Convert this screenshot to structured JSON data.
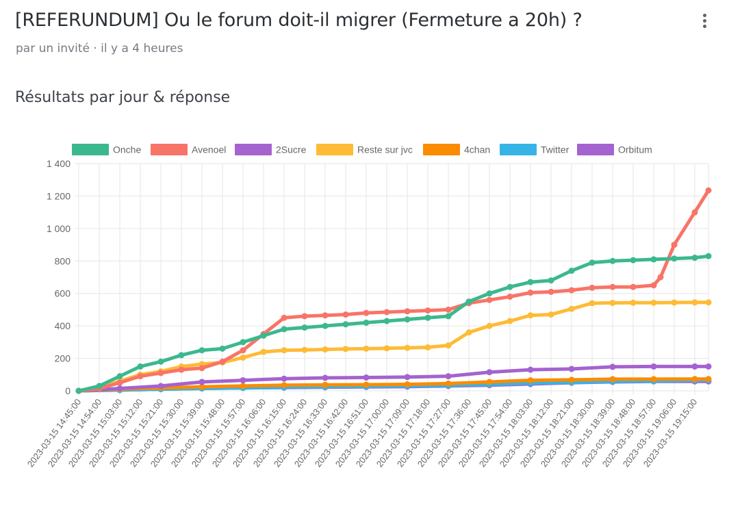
{
  "header": {
    "title": "[REFERUNDUM] Ou le forum doit-il migrer (Fermeture a 20h) ?",
    "subtitle": "par un invité · il y a 4 heures",
    "menu_icon": "more-vertical-icon"
  },
  "section_title": "Résultats par jour & réponse",
  "chart_data": {
    "type": "line",
    "title": "",
    "xlabel": "",
    "ylabel": "",
    "ylim": [
      0,
      1400
    ],
    "yticks": [
      0,
      200,
      400,
      600,
      800,
      1000,
      1200,
      1400
    ],
    "ytick_labels": [
      "0",
      "200",
      "400",
      "600",
      "800",
      "1 000",
      "1 200",
      "1 400"
    ],
    "xticks": [
      "2023-03-15 14:45:00",
      "2023-03-15 14:54:00",
      "2023-03-15 15:03:00",
      "2023-03-15 15:12:00",
      "2023-03-15 15:21:00",
      "2023-03-15 15:30:00",
      "2023-03-15 15:39:00",
      "2023-03-15 15:48:00",
      "2023-03-15 15:57:00",
      "2023-03-15 16:06:00",
      "2023-03-15 16:15:00",
      "2023-03-15 16:24:00",
      "2023-03-15 16:33:00",
      "2023-03-15 16:42:00",
      "2023-03-15 16:51:00",
      "2023-03-15 17:00:00",
      "2023-03-15 17:09:00",
      "2023-03-15 17:18:00",
      "2023-03-15 17:27:00",
      "2023-03-15 17:36:00",
      "2023-03-15 17:45:00",
      "2023-03-15 17:54:00",
      "2023-03-15 18:03:00",
      "2023-03-15 18:12:00",
      "2023-03-15 18:21:00",
      "2023-03-15 18:30:00",
      "2023-03-15 18:39:00",
      "2023-03-15 18:48:00",
      "2023-03-15 18:57:00",
      "2023-03-15 19:06:00",
      "2023-03-15 19:15:00"
    ],
    "x_range": [
      "2023-03-15 14:45:00",
      "2023-03-15 19:21:00"
    ],
    "grid": true,
    "legend_position": "top",
    "series": [
      {
        "name": "Onche",
        "color": "#3cb88e",
        "x": [
          "2023-03-15 14:45:00",
          "2023-03-15 14:54:00",
          "2023-03-15 15:03:00",
          "2023-03-15 15:12:00",
          "2023-03-15 15:21:00",
          "2023-03-15 15:30:00",
          "2023-03-15 15:39:00",
          "2023-03-15 15:48:00",
          "2023-03-15 15:57:00",
          "2023-03-15 16:06:00",
          "2023-03-15 16:15:00",
          "2023-03-15 16:24:00",
          "2023-03-15 16:33:00",
          "2023-03-15 16:42:00",
          "2023-03-15 16:51:00",
          "2023-03-15 17:00:00",
          "2023-03-15 17:09:00",
          "2023-03-15 17:18:00",
          "2023-03-15 17:27:00",
          "2023-03-15 17:36:00",
          "2023-03-15 17:45:00",
          "2023-03-15 17:54:00",
          "2023-03-15 18:03:00",
          "2023-03-15 18:12:00",
          "2023-03-15 18:21:00",
          "2023-03-15 18:30:00",
          "2023-03-15 18:39:00",
          "2023-03-15 18:48:00",
          "2023-03-15 18:57:00",
          "2023-03-15 19:06:00",
          "2023-03-15 19:15:00",
          "2023-03-15 19:21:00"
        ],
        "values": [
          0,
          30,
          90,
          150,
          180,
          220,
          250,
          260,
          300,
          340,
          380,
          390,
          400,
          410,
          420,
          430,
          440,
          450,
          460,
          550,
          600,
          640,
          670,
          680,
          740,
          790,
          800,
          805,
          810,
          815,
          820,
          830
        ]
      },
      {
        "name": "Avenoel",
        "color": "#f87467",
        "x": [
          "2023-03-15 14:45:00",
          "2023-03-15 14:54:00",
          "2023-03-15 15:03:00",
          "2023-03-15 15:12:00",
          "2023-03-15 15:21:00",
          "2023-03-15 15:30:00",
          "2023-03-15 15:39:00",
          "2023-03-15 15:48:00",
          "2023-03-15 15:57:00",
          "2023-03-15 16:06:00",
          "2023-03-15 16:15:00",
          "2023-03-15 16:24:00",
          "2023-03-15 16:33:00",
          "2023-03-15 16:42:00",
          "2023-03-15 16:51:00",
          "2023-03-15 17:00:00",
          "2023-03-15 17:09:00",
          "2023-03-15 17:18:00",
          "2023-03-15 17:27:00",
          "2023-03-15 17:36:00",
          "2023-03-15 17:45:00",
          "2023-03-15 17:54:00",
          "2023-03-15 18:03:00",
          "2023-03-15 18:12:00",
          "2023-03-15 18:21:00",
          "2023-03-15 18:30:00",
          "2023-03-15 18:39:00",
          "2023-03-15 18:48:00",
          "2023-03-15 18:57:00",
          "2023-03-15 19:00:00",
          "2023-03-15 19:06:00",
          "2023-03-15 19:15:00",
          "2023-03-15 19:21:00"
        ],
        "values": [
          0,
          15,
          50,
          90,
          110,
          130,
          140,
          180,
          250,
          350,
          450,
          460,
          465,
          470,
          480,
          485,
          490,
          495,
          500,
          540,
          560,
          580,
          605,
          610,
          620,
          635,
          640,
          640,
          650,
          700,
          900,
          1100,
          1235
        ]
      },
      {
        "name": "2Sucre",
        "color": "#a463cf",
        "x": [
          "2023-03-15 14:45:00",
          "2023-03-15 15:03:00",
          "2023-03-15 15:21:00",
          "2023-03-15 15:39:00",
          "2023-03-15 15:57:00",
          "2023-03-15 16:15:00",
          "2023-03-15 16:33:00",
          "2023-03-15 16:51:00",
          "2023-03-15 17:09:00",
          "2023-03-15 17:27:00",
          "2023-03-15 17:45:00",
          "2023-03-15 18:03:00",
          "2023-03-15 18:21:00",
          "2023-03-15 18:39:00",
          "2023-03-15 18:57:00",
          "2023-03-15 19:15:00",
          "2023-03-15 19:21:00"
        ],
        "values": [
          0,
          15,
          30,
          55,
          65,
          75,
          80,
          82,
          85,
          90,
          115,
          130,
          135,
          148,
          150,
          150,
          150
        ]
      },
      {
        "name": "Reste sur jvc",
        "color": "#fdbb36",
        "x": [
          "2023-03-15 14:45:00",
          "2023-03-15 14:54:00",
          "2023-03-15 15:03:00",
          "2023-03-15 15:12:00",
          "2023-03-15 15:21:00",
          "2023-03-15 15:30:00",
          "2023-03-15 15:39:00",
          "2023-03-15 15:48:00",
          "2023-03-15 15:57:00",
          "2023-03-15 16:06:00",
          "2023-03-15 16:15:00",
          "2023-03-15 16:24:00",
          "2023-03-15 16:33:00",
          "2023-03-15 16:42:00",
          "2023-03-15 16:51:00",
          "2023-03-15 17:00:00",
          "2023-03-15 17:09:00",
          "2023-03-15 17:18:00",
          "2023-03-15 17:27:00",
          "2023-03-15 17:36:00",
          "2023-03-15 17:45:00",
          "2023-03-15 17:54:00",
          "2023-03-15 18:03:00",
          "2023-03-15 18:12:00",
          "2023-03-15 18:21:00",
          "2023-03-15 18:30:00",
          "2023-03-15 18:39:00",
          "2023-03-15 18:48:00",
          "2023-03-15 18:57:00",
          "2023-03-15 19:06:00",
          "2023-03-15 19:15:00",
          "2023-03-15 19:21:00"
        ],
        "values": [
          0,
          20,
          60,
          100,
          120,
          150,
          165,
          175,
          205,
          240,
          250,
          252,
          255,
          258,
          260,
          262,
          265,
          268,
          280,
          360,
          400,
          430,
          465,
          470,
          505,
          540,
          542,
          543,
          543,
          544,
          545,
          545
        ]
      },
      {
        "name": "4chan",
        "color": "#fb8c00",
        "x": [
          "2023-03-15 14:45:00",
          "2023-03-15 15:03:00",
          "2023-03-15 15:21:00",
          "2023-03-15 15:39:00",
          "2023-03-15 15:57:00",
          "2023-03-15 16:15:00",
          "2023-03-15 16:33:00",
          "2023-03-15 16:51:00",
          "2023-03-15 17:09:00",
          "2023-03-15 17:27:00",
          "2023-03-15 17:45:00",
          "2023-03-15 18:03:00",
          "2023-03-15 18:21:00",
          "2023-03-15 18:39:00",
          "2023-03-15 18:57:00",
          "2023-03-15 19:15:00",
          "2023-03-15 19:21:00"
        ],
        "values": [
          0,
          10,
          18,
          25,
          30,
          35,
          37,
          38,
          40,
          45,
          55,
          65,
          68,
          72,
          72,
          73,
          73
        ]
      },
      {
        "name": "Twitter",
        "color": "#36b4e6",
        "x": [
          "2023-03-15 14:45:00",
          "2023-03-15 15:03:00",
          "2023-03-15 15:21:00",
          "2023-03-15 15:39:00",
          "2023-03-15 15:57:00",
          "2023-03-15 16:15:00",
          "2023-03-15 16:33:00",
          "2023-03-15 16:51:00",
          "2023-03-15 17:09:00",
          "2023-03-15 17:27:00",
          "2023-03-15 17:45:00",
          "2023-03-15 18:03:00",
          "2023-03-15 18:21:00",
          "2023-03-15 18:39:00",
          "2023-03-15 18:57:00",
          "2023-03-15 19:15:00",
          "2023-03-15 19:21:00"
        ],
        "values": [
          0,
          5,
          10,
          15,
          18,
          22,
          25,
          27,
          30,
          33,
          40,
          48,
          52,
          58,
          60,
          65,
          65
        ]
      },
      {
        "name": "Orbitum",
        "color": "#a463cf",
        "x": [
          "2023-03-15 14:45:00",
          "2023-03-15 15:03:00",
          "2023-03-15 15:21:00",
          "2023-03-15 15:39:00",
          "2023-03-15 15:57:00",
          "2023-03-15 16:15:00",
          "2023-03-15 16:33:00",
          "2023-03-15 16:51:00",
          "2023-03-15 17:09:00",
          "2023-03-15 17:27:00",
          "2023-03-15 17:45:00",
          "2023-03-15 18:03:00",
          "2023-03-15 18:21:00",
          "2023-03-15 18:39:00",
          "2023-03-15 18:57:00",
          "2023-03-15 19:15:00",
          "2023-03-15 19:21:00"
        ],
        "values": [
          0,
          5,
          10,
          15,
          18,
          20,
          22,
          24,
          26,
          30,
          35,
          42,
          50,
          55,
          58,
          58,
          58
        ]
      }
    ]
  }
}
